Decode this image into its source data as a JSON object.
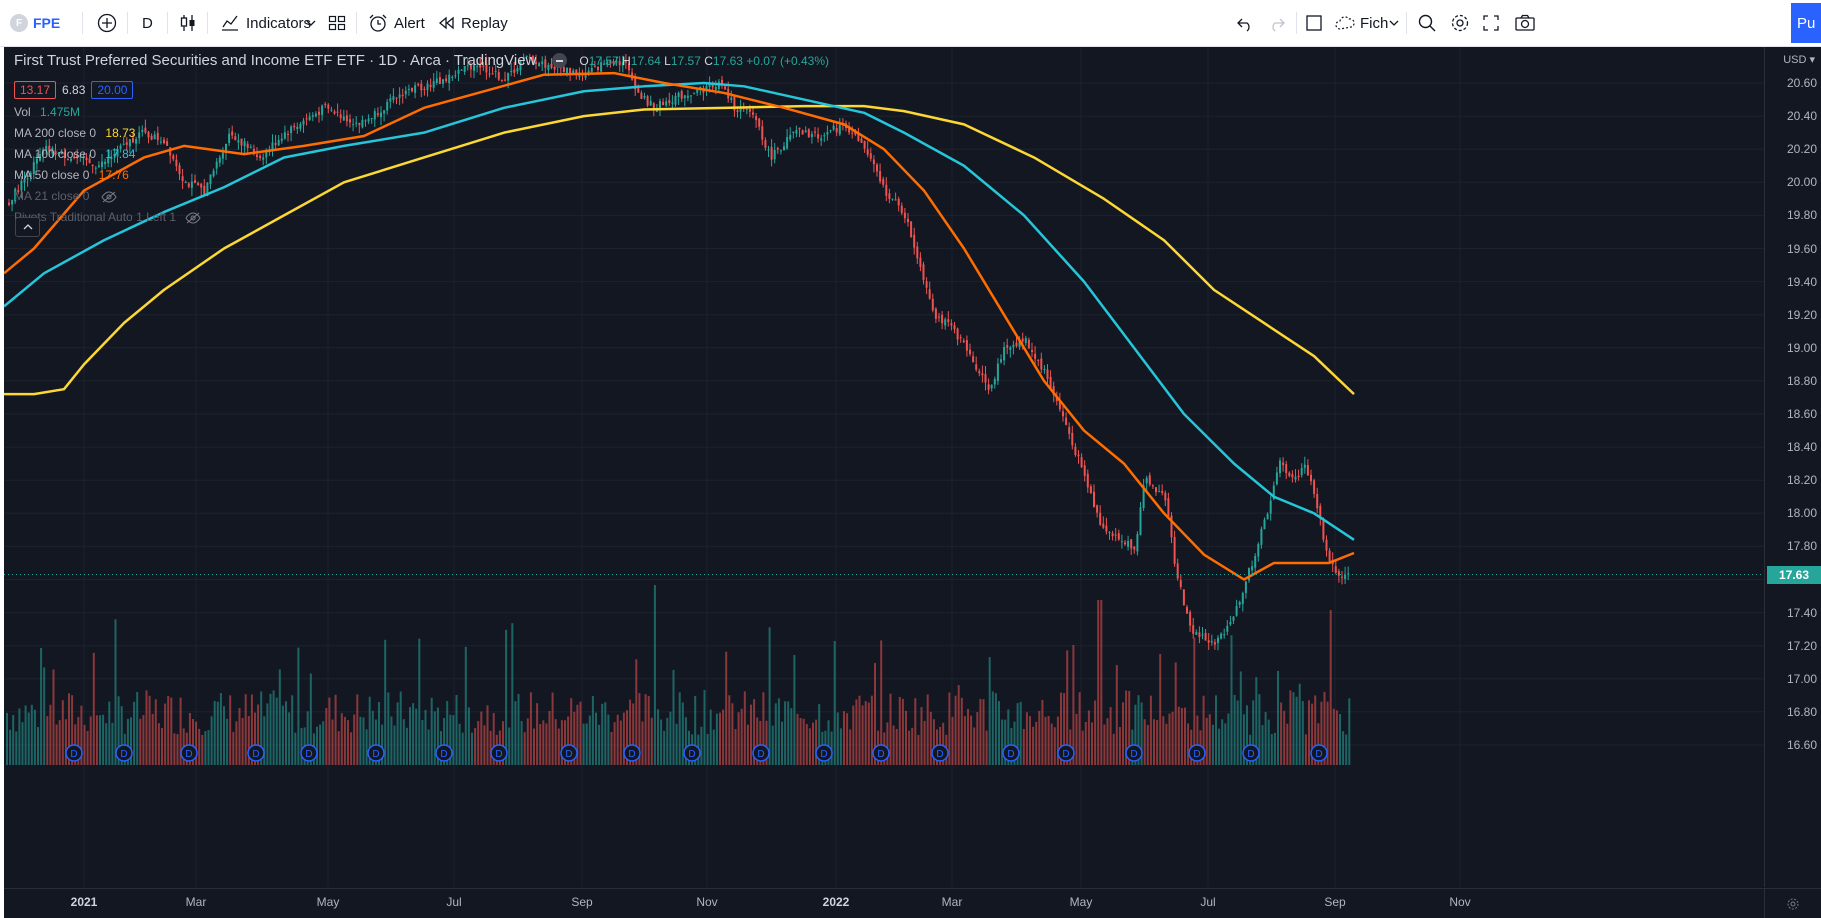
{
  "toolbar": {
    "symbol": "FPE",
    "interval": "D",
    "indicators_label": "Indicators",
    "alert_label": "Alert",
    "replay_label": "Replay",
    "layout_label": "Fich",
    "publish_label": "Pu"
  },
  "legend": {
    "title": "First Trust Preferred Securities and Income ETF ETF · 1D · Arca · TradingView",
    "ohlc": {
      "o_label": "O",
      "o": "17.57",
      "h_label": "H",
      "h": "17.64",
      "l_label": "L",
      "l": "17.57",
      "c_label": "C",
      "c": "17.63",
      "change": "+0.07 (+0.43%)"
    },
    "bid": "13.17",
    "spread": "6.83",
    "ask": "20.00",
    "volume_label": "Vol",
    "volume_value": "1.475M",
    "ma200_label": "MA 200 close 0",
    "ma200_value": "18.73",
    "ma100_label": "MA 100 close 0",
    "ma100_value": "17.84",
    "ma50_label": "MA 50 close 0",
    "ma50_value": "17.76",
    "ma21_label": "MA 21 close 0",
    "pivots_label": "Pivots Traditional Auto 1 Left 1"
  },
  "colors": {
    "background": "#131722",
    "up": "#26a69a",
    "down": "#ef5350",
    "ma200": "#fdd835",
    "ma100": "#26c6da",
    "ma50": "#ff6d00"
  },
  "price_axis": {
    "currency": "USD",
    "ticks": [
      "20.60",
      "20.40",
      "20.20",
      "20.00",
      "19.80",
      "19.60",
      "19.40",
      "19.20",
      "19.00",
      "18.80",
      "18.60",
      "18.40",
      "18.20",
      "18.00",
      "17.80",
      "17.60",
      "17.40",
      "17.20",
      "17.00",
      "16.80",
      "16.60"
    ],
    "last_price": "17.63"
  },
  "time_axis": {
    "labels": [
      "2021",
      "Mar",
      "May",
      "Jul",
      "Sep",
      "Nov",
      "2022",
      "Mar",
      "May",
      "Jul",
      "Sep",
      "Nov"
    ]
  },
  "dividend_marker": "D",
  "chart_data": {
    "type": "candlestick",
    "symbol": "FPE",
    "interval": "1D",
    "price_range": [
      16.5,
      20.75
    ],
    "last_close": 17.63,
    "price_path": [
      [
        0,
        19.85
      ],
      [
        40,
        20.2
      ],
      [
        95,
        20.1
      ],
      [
        135,
        20.3
      ],
      [
        160,
        20.25
      ],
      [
        180,
        20.0
      ],
      [
        200,
        19.95
      ],
      [
        225,
        20.3
      ],
      [
        255,
        20.15
      ],
      [
        280,
        20.3
      ],
      [
        320,
        20.45
      ],
      [
        355,
        20.35
      ],
      [
        400,
        20.55
      ],
      [
        440,
        20.62
      ],
      [
        470,
        20.72
      ],
      [
        500,
        20.62
      ],
      [
        520,
        20.75
      ],
      [
        545,
        20.7
      ],
      [
        580,
        20.65
      ],
      [
        605,
        20.74
      ],
      [
        620,
        20.72
      ],
      [
        635,
        20.52
      ],
      [
        650,
        20.45
      ],
      [
        665,
        20.5
      ],
      [
        690,
        20.55
      ],
      [
        715,
        20.6
      ],
      [
        730,
        20.45
      ],
      [
        750,
        20.4
      ],
      [
        765,
        20.15
      ],
      [
        790,
        20.3
      ],
      [
        815,
        20.28
      ],
      [
        840,
        20.35
      ],
      [
        860,
        20.2
      ],
      [
        880,
        19.95
      ],
      [
        900,
        19.8
      ],
      [
        910,
        19.6
      ],
      [
        930,
        19.2
      ],
      [
        950,
        19.1
      ],
      [
        970,
        18.9
      ],
      [
        985,
        18.75
      ],
      [
        1000,
        19.0
      ],
      [
        1020,
        19.05
      ],
      [
        1040,
        18.85
      ],
      [
        1060,
        18.55
      ],
      [
        1075,
        18.3
      ],
      [
        1095,
        17.95
      ],
      [
        1110,
        17.85
      ],
      [
        1130,
        17.8
      ],
      [
        1140,
        18.2
      ],
      [
        1160,
        18.1
      ],
      [
        1170,
        17.7
      ],
      [
        1185,
        17.3
      ],
      [
        1210,
        17.2
      ],
      [
        1230,
        17.4
      ],
      [
        1250,
        17.75
      ],
      [
        1262,
        18.0
      ],
      [
        1275,
        18.3
      ],
      [
        1290,
        18.2
      ],
      [
        1300,
        18.3
      ],
      [
        1312,
        18.05
      ],
      [
        1322,
        17.75
      ],
      [
        1335,
        17.6
      ],
      [
        1350,
        17.63
      ]
    ],
    "ma_series": [
      {
        "name": "MA 200",
        "color": "#fdd835",
        "points": [
          [
            0,
            18.72
          ],
          [
            30,
            18.72
          ],
          [
            60,
            18.75
          ],
          [
            80,
            18.9
          ],
          [
            120,
            19.15
          ],
          [
            160,
            19.35
          ],
          [
            220,
            19.6
          ],
          [
            280,
            19.8
          ],
          [
            340,
            20.0
          ],
          [
            420,
            20.15
          ],
          [
            500,
            20.3
          ],
          [
            580,
            20.4
          ],
          [
            640,
            20.44
          ],
          [
            720,
            20.45
          ],
          [
            800,
            20.46
          ],
          [
            860,
            20.46
          ],
          [
            900,
            20.43
          ],
          [
            960,
            20.35
          ],
          [
            1030,
            20.15
          ],
          [
            1100,
            19.9
          ],
          [
            1160,
            19.65
          ],
          [
            1210,
            19.35
          ],
          [
            1260,
            19.15
          ],
          [
            1310,
            18.95
          ],
          [
            1350,
            18.72
          ]
        ]
      },
      {
        "name": "MA 100",
        "color": "#26c6da",
        "points": [
          [
            0,
            19.25
          ],
          [
            40,
            19.45
          ],
          [
            100,
            19.65
          ],
          [
            160,
            19.82
          ],
          [
            220,
            19.97
          ],
          [
            280,
            20.15
          ],
          [
            340,
            20.22
          ],
          [
            420,
            20.3
          ],
          [
            500,
            20.45
          ],
          [
            580,
            20.55
          ],
          [
            640,
            20.58
          ],
          [
            700,
            20.6
          ],
          [
            740,
            20.58
          ],
          [
            800,
            20.5
          ],
          [
            860,
            20.42
          ],
          [
            900,
            20.3
          ],
          [
            960,
            20.1
          ],
          [
            1020,
            19.8
          ],
          [
            1080,
            19.4
          ],
          [
            1130,
            19.0
          ],
          [
            1180,
            18.6
          ],
          [
            1230,
            18.3
          ],
          [
            1270,
            18.1
          ],
          [
            1310,
            18.0
          ],
          [
            1350,
            17.84
          ]
        ]
      },
      {
        "name": "MA 50",
        "color": "#ff6d00",
        "points": [
          [
            0,
            19.45
          ],
          [
            30,
            19.6
          ],
          [
            80,
            19.95
          ],
          [
            140,
            20.15
          ],
          [
            180,
            20.22
          ],
          [
            240,
            20.17
          ],
          [
            300,
            20.22
          ],
          [
            360,
            20.28
          ],
          [
            420,
            20.45
          ],
          [
            480,
            20.55
          ],
          [
            540,
            20.65
          ],
          [
            610,
            20.66
          ],
          [
            660,
            20.6
          ],
          [
            720,
            20.54
          ],
          [
            780,
            20.45
          ],
          [
            840,
            20.35
          ],
          [
            880,
            20.2
          ],
          [
            920,
            19.95
          ],
          [
            960,
            19.6
          ],
          [
            1000,
            19.2
          ],
          [
            1040,
            18.8
          ],
          [
            1080,
            18.5
          ],
          [
            1120,
            18.3
          ],
          [
            1160,
            18.0
          ],
          [
            1200,
            17.75
          ],
          [
            1240,
            17.6
          ],
          [
            1270,
            17.7
          ],
          [
            1300,
            17.7
          ],
          [
            1325,
            17.7
          ],
          [
            1350,
            17.76
          ]
        ]
      }
    ],
    "volume_max_label": "1.475M",
    "dividends": [
      70,
      120,
      185,
      252,
      305,
      372,
      440,
      495,
      565,
      628,
      688,
      757,
      820,
      877,
      936,
      1007,
      1062,
      1130,
      1193,
      1247,
      1315
    ]
  }
}
